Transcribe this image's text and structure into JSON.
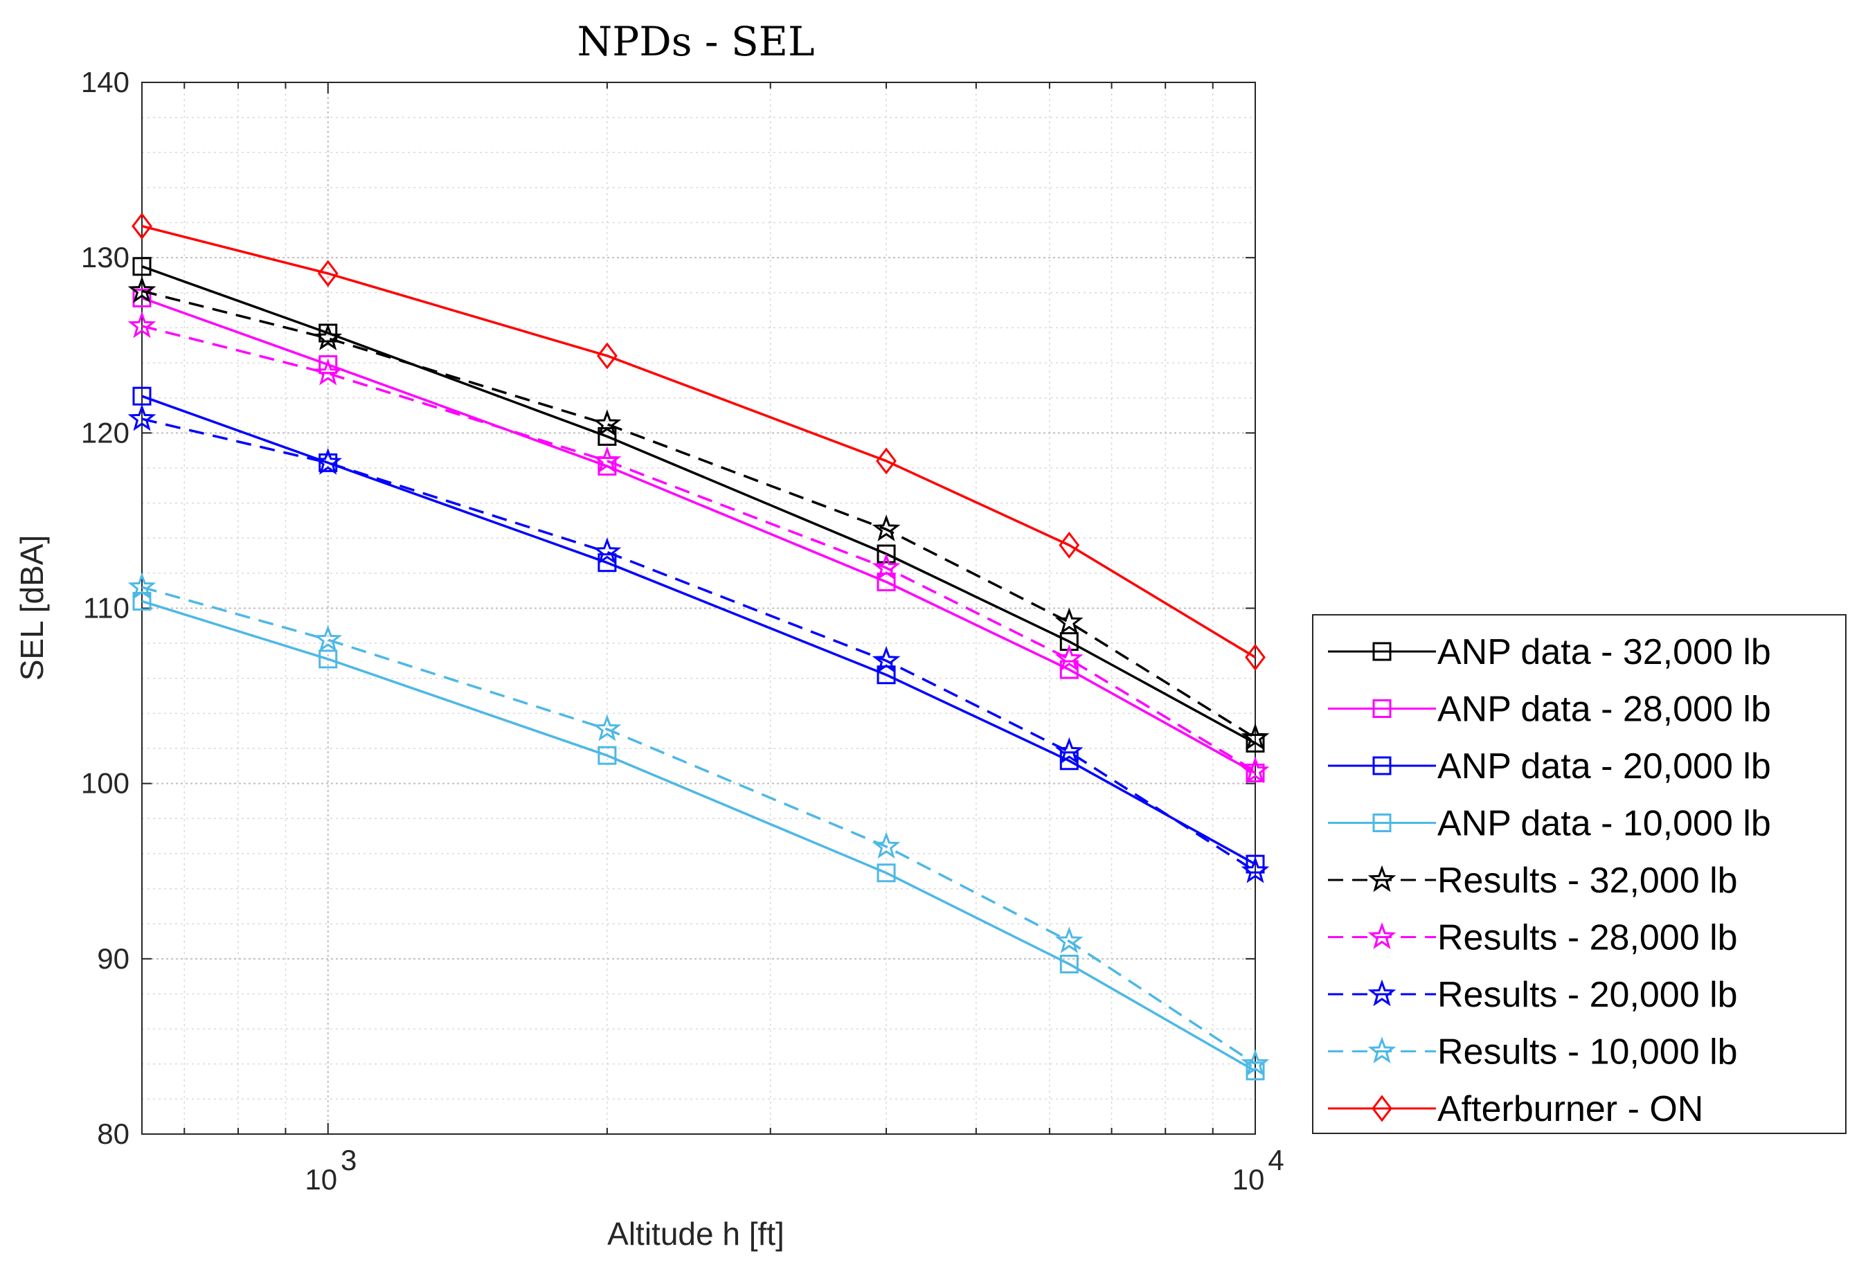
{
  "chart_data": {
    "type": "line",
    "title": "NPDs - SEL",
    "xlabel": "Altitude h [ft]",
    "ylabel": "SEL [dBA]",
    "xscale": "log",
    "xlim": [
      630,
      10000
    ],
    "ylim": [
      80,
      140
    ],
    "yticks": [
      80,
      90,
      100,
      110,
      120,
      130,
      140
    ],
    "xticks": [
      {
        "value": 1000,
        "base": "10",
        "exp": "3"
      },
      {
        "value": 10000,
        "base": "10",
        "exp": "4"
      }
    ],
    "grid": true,
    "minor_grid": true,
    "legend_position": "outside-right",
    "x": [
      630,
      1000,
      2000,
      4000,
      6300,
      10000
    ],
    "series": [
      {
        "name": "ANP data - 32,000 lb",
        "color": "#000000",
        "style": "solid",
        "marker": "square",
        "values": [
          129.5,
          125.7,
          119.8,
          113.1,
          108.1,
          102.3
        ]
      },
      {
        "name": "ANP data - 28,000 lb",
        "color": "#ff00ff",
        "style": "solid",
        "marker": "square",
        "values": [
          127.7,
          123.9,
          118.1,
          111.5,
          106.5,
          100.6
        ]
      },
      {
        "name": "ANP data - 20,000 lb",
        "color": "#0000ff",
        "style": "solid",
        "marker": "square",
        "values": [
          122.1,
          118.3,
          112.6,
          106.2,
          101.3,
          95.4
        ]
      },
      {
        "name": "ANP data - 10,000 lb",
        "color": "#4db8e6",
        "style": "solid",
        "marker": "square",
        "values": [
          110.4,
          107.1,
          101.6,
          94.9,
          89.7,
          83.6
        ]
      },
      {
        "name": "Results - 32,000 lb",
        "color": "#000000",
        "style": "dashed",
        "marker": "star",
        "values": [
          128.1,
          125.4,
          120.5,
          114.5,
          109.2,
          102.6
        ]
      },
      {
        "name": "Results - 28,000 lb",
        "color": "#ff00ff",
        "style": "dashed",
        "marker": "star",
        "values": [
          126.1,
          123.4,
          118.4,
          112.3,
          107.1,
          100.7
        ]
      },
      {
        "name": "Results - 20,000 lb",
        "color": "#0000ff",
        "style": "dashed",
        "marker": "star",
        "values": [
          120.8,
          118.3,
          113.2,
          107.0,
          101.8,
          95.0
        ]
      },
      {
        "name": "Results - 10,000 lb",
        "color": "#4db8e6",
        "style": "dashed",
        "marker": "star",
        "values": [
          111.2,
          108.2,
          103.1,
          96.4,
          91.0,
          84.0
        ]
      },
      {
        "name": "Afterburner - ON",
        "color": "#ff0000",
        "style": "solid",
        "marker": "diamond",
        "values": [
          131.8,
          129.1,
          124.4,
          118.4,
          113.6,
          107.2
        ]
      }
    ]
  }
}
